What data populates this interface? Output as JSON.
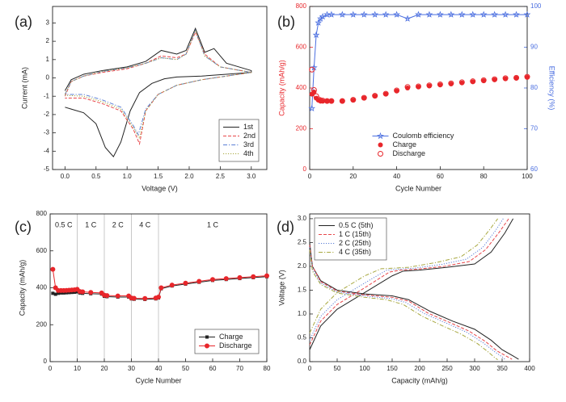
{
  "chart_data": [
    {
      "type": "line",
      "panel_label": "(a)",
      "xlabel": "Voltage (V)",
      "ylabel": "Current (mA)",
      "xlim": [
        -0.2,
        3.25
      ],
      "ylim": [
        -5,
        3.9
      ],
      "xticks": [
        {
          "value": 0,
          "label": "0.0"
        },
        0.5,
        {
          "value": 1,
          "label": "1.0"
        },
        1.5,
        {
          "value": 2,
          "label": "2.0"
        },
        2.5,
        {
          "value": 3,
          "label": "3.0"
        }
      ],
      "yticks": [
        -5,
        -4,
        -3,
        -2,
        -1,
        0,
        1,
        2,
        3
      ],
      "legend": "lower right",
      "legend_frame": true,
      "series": [
        {
          "name": "1st",
          "color": "#222222",
          "dash": "solid",
          "x": [
            0,
            0.1,
            0.3,
            0.6,
            1.0,
            1.3,
            1.55,
            1.8,
            1.95,
            2.1,
            2.25,
            2.4,
            2.6,
            3.0,
            3.0,
            2.6,
            2.2,
            1.8,
            1.6,
            1.4,
            1.2,
            1.05,
            0.9,
            0.78,
            0.65,
            0.5,
            0.3,
            0.1,
            0
          ],
          "values": [
            -0.7,
            -0.1,
            0.2,
            0.4,
            0.6,
            0.9,
            1.5,
            1.3,
            1.5,
            2.7,
            1.4,
            1.6,
            0.8,
            0.4,
            0.3,
            0.2,
            0.1,
            0.05,
            -0.05,
            -0.3,
            -0.8,
            -1.8,
            -3.5,
            -4.3,
            -3.8,
            -2.5,
            -1.9,
            -1.7,
            -1.6
          ]
        },
        {
          "name": "2nd",
          "color": "#e8474b",
          "dash": "dashed",
          "x": [
            0,
            0.1,
            0.3,
            0.6,
            1.0,
            1.3,
            1.55,
            1.8,
            1.95,
            2.1,
            2.25,
            2.5,
            3.0,
            2.6,
            2.2,
            1.8,
            1.5,
            1.3,
            1.2,
            1.1,
            0.9,
            0.6,
            0.3,
            0
          ],
          "values": [
            -1.0,
            -0.2,
            0.1,
            0.3,
            0.5,
            0.8,
            1.2,
            1.1,
            1.3,
            2.5,
            1.3,
            0.6,
            0.3,
            0.1,
            -0.1,
            -0.4,
            -0.9,
            -1.8,
            -3.6,
            -2.8,
            -1.8,
            -1.4,
            -1.1,
            -1.1
          ]
        },
        {
          "name": "3rd",
          "color": "#5b7fd6",
          "dash": "dashdot",
          "x": [
            0,
            0.1,
            0.3,
            0.6,
            1.0,
            1.3,
            1.55,
            1.8,
            1.95,
            2.1,
            2.25,
            2.5,
            3.0,
            2.6,
            2.2,
            1.8,
            1.5,
            1.3,
            1.18,
            1.1,
            0.9,
            0.6,
            0.3,
            0
          ],
          "values": [
            -0.9,
            -0.2,
            0.1,
            0.35,
            0.55,
            0.8,
            1.1,
            1.0,
            1.3,
            2.6,
            1.2,
            0.6,
            0.3,
            0.1,
            -0.1,
            -0.4,
            -0.9,
            -1.7,
            -3.1,
            -2.6,
            -1.6,
            -1.2,
            -0.9,
            -0.9
          ]
        },
        {
          "name": "4th",
          "color": "#a8a840",
          "dash": "dotted",
          "x": [
            0,
            0.1,
            0.3,
            0.6,
            1.0,
            1.3,
            1.55,
            1.8,
            1.95,
            2.1,
            2.25,
            2.5,
            3.0,
            2.6,
            2.2,
            1.8,
            1.5,
            1.3,
            1.2,
            1.1,
            0.9,
            0.6,
            0.3,
            0
          ],
          "values": [
            -0.9,
            -0.2,
            0.1,
            0.35,
            0.55,
            0.8,
            1.1,
            1.0,
            1.3,
            2.6,
            1.2,
            0.6,
            0.3,
            0.1,
            -0.1,
            -0.4,
            -0.9,
            -1.8,
            -3.3,
            -2.7,
            -1.7,
            -1.3,
            -1.0,
            -0.95
          ]
        }
      ]
    },
    {
      "type": "scatter",
      "panel_label": "(b)",
      "xlabel": "Cycle Number",
      "ylabel": "Capacity (mAh/g)",
      "y2label": "Efficiency (%)",
      "ycolor": "#e8262b",
      "y2color": "#4a6ee0",
      "xlim": [
        0,
        100
      ],
      "ylim": [
        0,
        800
      ],
      "y2lim": [
        60,
        100
      ],
      "xticks": [
        0,
        20,
        40,
        60,
        80,
        100
      ],
      "yticks": [
        0,
        200,
        400,
        600,
        800
      ],
      "y2ticks": [
        60,
        70,
        80,
        90,
        100
      ],
      "legend": "lower center",
      "legend_frame": false,
      "x": [
        1,
        2,
        3,
        4,
        5,
        6,
        8,
        10,
        15,
        20,
        25,
        30,
        35,
        40,
        45,
        50,
        55,
        60,
        65,
        70,
        75,
        80,
        85,
        90,
        95,
        100
      ],
      "series": [
        {
          "name": "Coulomb efficiency",
          "color": "#4a6ee0",
          "axis": "y2",
          "line": true,
          "marker": "star",
          "values": [
            75,
            85,
            93,
            96,
            97,
            97.5,
            98,
            98,
            98,
            98,
            98,
            98,
            98,
            98,
            97,
            98,
            98,
            98,
            98,
            98,
            98,
            98,
            98,
            98,
            98,
            98
          ]
        },
        {
          "name": "Charge",
          "color": "#e8262b",
          "line": false,
          "marker": "circle",
          "values": [
            370,
            380,
            350,
            340,
            335,
            335,
            335,
            335,
            335,
            340,
            350,
            360,
            370,
            385,
            400,
            405,
            410,
            415,
            420,
            425,
            430,
            435,
            440,
            445,
            448,
            452
          ]
        },
        {
          "name": "Discharge",
          "color": "#e8262b",
          "line": false,
          "marker": "circle-open",
          "values": [
            490,
            390,
            360,
            345,
            340,
            338,
            336,
            336,
            336,
            342,
            352,
            362,
            372,
            388,
            405,
            408,
            413,
            418,
            423,
            428,
            433,
            438,
            443,
            448,
            450,
            455
          ]
        }
      ]
    },
    {
      "type": "line",
      "panel_label": "(c)",
      "xlabel": "Cycle Number",
      "ylabel": "Capacity (mAh/g)",
      "xlim": [
        0,
        80
      ],
      "ylim": [
        0,
        800
      ],
      "xticks": [
        0,
        10,
        20,
        30,
        40,
        50,
        60,
        70,
        80
      ],
      "yticks": [
        0,
        200,
        400,
        600,
        800
      ],
      "legend": "lower right",
      "legend_frame": true,
      "rate_regions": [
        {
          "label": "0.5 C",
          "from": 0,
          "to": 10
        },
        {
          "label": "1 C",
          "from": 10,
          "to": 20
        },
        {
          "label": "2 C",
          "from": 20,
          "to": 30
        },
        {
          "label": "4 C",
          "from": 30,
          "to": 40
        },
        {
          "label": "1 C",
          "from": 40,
          "to": 80
        }
      ],
      "x": [
        1,
        2,
        3,
        4,
        5,
        6,
        7,
        8,
        9,
        10,
        11,
        12,
        15,
        19,
        20,
        21,
        25,
        29,
        30,
        31,
        35,
        39,
        40,
        41,
        45,
        50,
        55,
        60,
        65,
        70,
        75,
        80
      ],
      "series": [
        {
          "name": "Charge",
          "color": "#222222",
          "line": true,
          "marker": "square",
          "values": [
            370,
            365,
            370,
            372,
            372,
            373,
            374,
            375,
            376,
            378,
            372,
            370,
            368,
            366,
            354,
            352,
            350,
            350,
            340,
            338,
            337,
            340,
            345,
            395,
            410,
            420,
            430,
            440,
            445,
            450,
            455,
            460
          ]
        },
        {
          "name": "Discharge",
          "color": "#e8262b",
          "line": true,
          "marker": "circle",
          "values": [
            500,
            400,
            385,
            385,
            385,
            386,
            387,
            388,
            389,
            392,
            380,
            378,
            375,
            372,
            360,
            358,
            356,
            356,
            345,
            343,
            342,
            345,
            350,
            400,
            415,
            425,
            435,
            445,
            450,
            455,
            460,
            465
          ]
        }
      ]
    },
    {
      "type": "line",
      "panel_label": "(d)",
      "xlabel": "Capacity (mAh/g)",
      "ylabel": "Voltage (V)",
      "xlim": [
        0,
        400
      ],
      "ylim": [
        0,
        3.1
      ],
      "xticks": [
        0,
        50,
        100,
        150,
        200,
        250,
        300,
        350,
        400
      ],
      "yticks": [
        {
          "value": 0,
          "label": "0.0"
        },
        0.5,
        {
          "value": 1,
          "label": "1.0"
        },
        1.5,
        {
          "value": 2,
          "label": "2.0"
        },
        2.5,
        {
          "value": 3,
          "label": "3.0"
        }
      ],
      "legend": "upper left",
      "legend_frame": true,
      "series": [
        {
          "name": "0.5 C (5th)",
          "color": "#222222",
          "dash": "solid",
          "x": [
            0,
            5,
            20,
            50,
            100,
            150,
            180,
            220,
            260,
            300,
            330,
            350,
            370,
            380,
            null,
            0,
            20,
            50,
            100,
            150,
            170,
            200,
            250,
            300,
            330,
            355,
            370
          ],
          "values": [
            2.5,
            2.0,
            1.7,
            1.5,
            1.42,
            1.38,
            1.3,
            1.05,
            0.85,
            0.68,
            0.45,
            0.25,
            0.12,
            0.05,
            null,
            0.25,
            0.75,
            1.1,
            1.45,
            1.8,
            1.9,
            1.92,
            1.98,
            2.05,
            2.3,
            2.7,
            3.0
          ]
        },
        {
          "name": "1 C (15th)",
          "color": "#e8474b",
          "dash": "dashed",
          "x": [
            0,
            5,
            20,
            50,
            100,
            150,
            180,
            215,
            255,
            290,
            320,
            340,
            360,
            368,
            null,
            0,
            20,
            50,
            100,
            145,
            165,
            195,
            245,
            290,
            320,
            345,
            362
          ],
          "values": [
            2.45,
            2.0,
            1.68,
            1.48,
            1.4,
            1.35,
            1.27,
            1.02,
            0.82,
            0.64,
            0.42,
            0.23,
            0.1,
            0.05,
            null,
            0.35,
            0.85,
            1.2,
            1.55,
            1.88,
            1.92,
            1.94,
            2.0,
            2.1,
            2.35,
            2.72,
            3.0
          ]
        },
        {
          "name": "2 C (25th)",
          "color": "#5b7fd6",
          "dash": "dotted",
          "x": [
            0,
            5,
            20,
            50,
            100,
            150,
            175,
            210,
            250,
            285,
            315,
            335,
            350,
            355,
            null,
            0,
            20,
            50,
            100,
            140,
            160,
            190,
            240,
            285,
            315,
            338,
            352
          ],
          "values": [
            2.4,
            1.95,
            1.65,
            1.46,
            1.38,
            1.32,
            1.24,
            1.0,
            0.8,
            0.62,
            0.4,
            0.22,
            0.1,
            0.05,
            null,
            0.45,
            0.95,
            1.3,
            1.65,
            1.92,
            1.94,
            1.96,
            2.04,
            2.15,
            2.4,
            2.75,
            3.0
          ]
        },
        {
          "name": "4 C (35th)",
          "color": "#a8a840",
          "dash": "dashdot",
          "x": [
            0,
            5,
            20,
            50,
            100,
            140,
            170,
            205,
            240,
            275,
            305,
            325,
            337,
            342,
            null,
            0,
            20,
            50,
            100,
            130,
            150,
            180,
            230,
            275,
            305,
            328,
            342
          ],
          "values": [
            2.35,
            1.9,
            1.62,
            1.44,
            1.35,
            1.3,
            1.2,
            0.95,
            0.76,
            0.58,
            0.38,
            0.2,
            0.08,
            0.04,
            null,
            0.6,
            1.1,
            1.45,
            1.8,
            1.95,
            1.96,
            1.98,
            2.08,
            2.2,
            2.45,
            2.78,
            3.0
          ]
        }
      ]
    }
  ]
}
